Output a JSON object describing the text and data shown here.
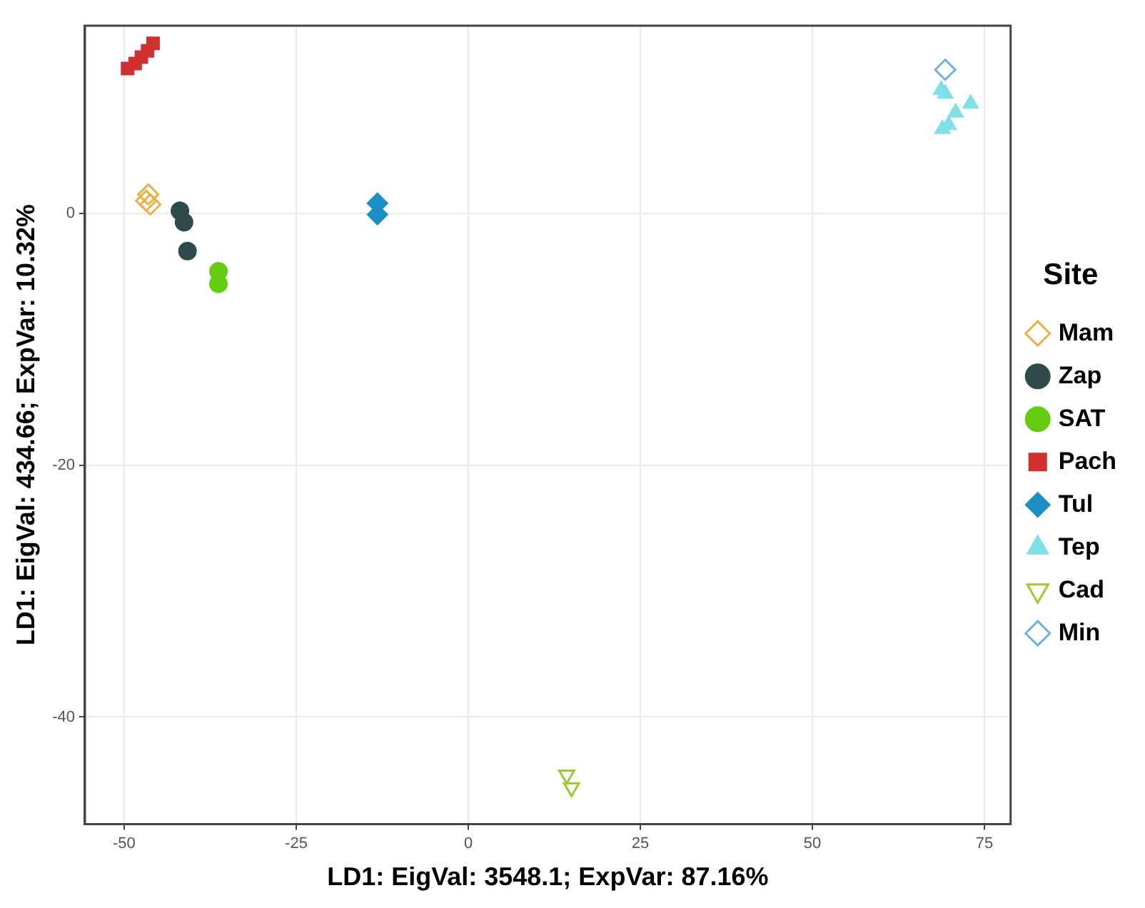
{
  "chart_data": {
    "type": "scatter",
    "xlabel": "LD1: EigVal: 3548.1; ExpVar: 87.16%",
    "ylabel": "LD1: EigVal: 434.66; ExpVar: 10.32%",
    "legend_title": "Site",
    "legend": "right",
    "grid": true,
    "xlim": [
      -55.7,
      78.8
    ],
    "ylim": [
      -48.5,
      14.9
    ],
    "xticks": [
      -50,
      -25,
      0,
      25,
      50,
      75
    ],
    "yticks": [
      -40,
      -20,
      0
    ],
    "series": [
      {
        "name": "Mam",
        "color": "#e8b14a",
        "marker": "diamond-open",
        "x": [
          -46.5,
          -46.2,
          -46.8
        ],
        "values": [
          1.5,
          0.7,
          1.0
        ]
      },
      {
        "name": "Zap",
        "color": "#2f4a4a",
        "marker": "circle",
        "x": [
          -41.9,
          -41.3,
          -40.8
        ],
        "values": [
          0.2,
          -0.7,
          -3.0
        ]
      },
      {
        "name": "SAT",
        "color": "#66cc11",
        "marker": "circle",
        "x": [
          -36.3,
          -36.3
        ],
        "values": [
          -4.6,
          -5.6
        ]
      },
      {
        "name": "Pach",
        "color": "#d03030",
        "marker": "square",
        "x": [
          -49.5,
          -48.4,
          -47.5,
          -46.6,
          -45.8
        ],
        "values": [
          11.5,
          11.9,
          12.4,
          12.9,
          13.5
        ]
      },
      {
        "name": "Tul",
        "color": "#1a8fc4",
        "marker": "diamond",
        "x": [
          -13.2,
          -13.2
        ],
        "values": [
          0.8,
          -0.1
        ]
      },
      {
        "name": "Tep",
        "color": "#80e0e8",
        "marker": "triangle",
        "x": [
          68.7,
          69.3,
          73.0,
          70.8,
          69.8,
          68.9
        ],
        "values": [
          9.8,
          9.5,
          8.7,
          8.0,
          7.0,
          6.7
        ]
      },
      {
        "name": "Cad",
        "color": "#99cc33",
        "marker": "triangle-down-open",
        "x": [
          14.3,
          15.0
        ],
        "values": [
          -44.6,
          -45.6
        ]
      },
      {
        "name": "Min",
        "color": "#6ab4e0",
        "marker": "diamond-open",
        "x": [
          69.3
        ],
        "values": [
          11.4
        ]
      }
    ]
  }
}
